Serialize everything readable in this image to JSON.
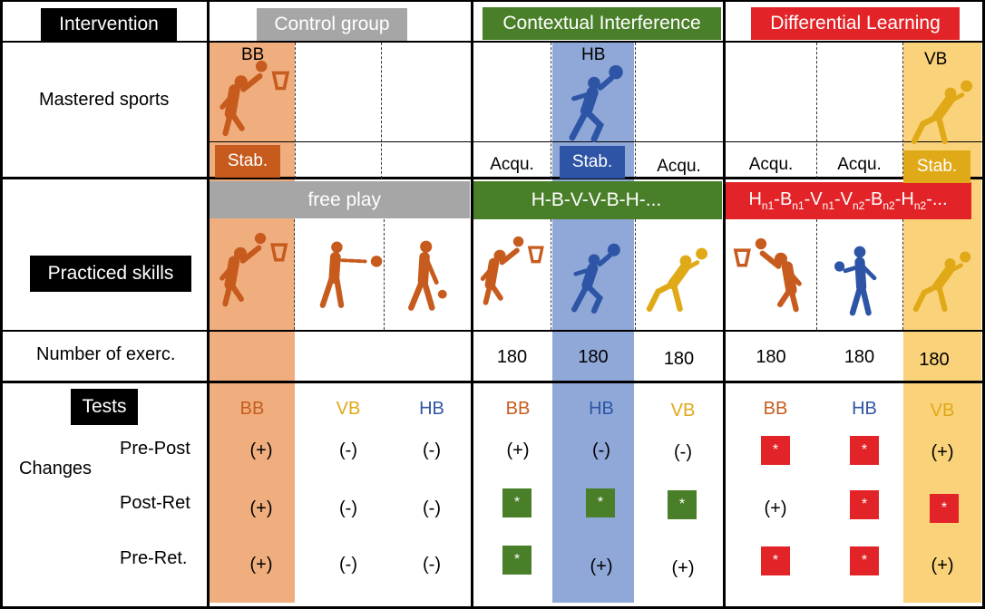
{
  "colors": {
    "orange": "#C75B1E",
    "orange_band": "#F0AE7F",
    "blue": "#2E55A5",
    "blue_band": "#8FA8D8",
    "yellow": "#E0A918",
    "yellow_band": "#FAD27A",
    "green": "#4A7F2A",
    "red": "#E22428",
    "gray": "#A6A6A6"
  },
  "header": {
    "intervention": "Intervention",
    "control_group": "Control group",
    "contextual_interference": "Contextual Interference",
    "differential_learning": "Differential Learning"
  },
  "rows": {
    "mastered_sports": "Mastered sports",
    "practiced_skills": "Practiced skills",
    "number_of_exercises": "Number of exerc.",
    "tests": "Tests",
    "changes": "Changes",
    "pre_post": "Pre-Post",
    "post_ret": "Post-Ret",
    "pre_ret": "Pre-Ret."
  },
  "mastered": {
    "bb_label": "BB",
    "hb_label": "HB",
    "vb_label": "VB",
    "status": [
      "Stab.",
      "",
      "",
      "Acqu.",
      "Stab.",
      "Acqu.",
      "Acqu.",
      "Acqu.",
      "Stab."
    ]
  },
  "practice": {
    "free_play": "free play",
    "ci_sequence": "H-B-V-V-B-H-...",
    "dl_sequence": {
      "h1": "H",
      "n1a": "n1",
      "b1": "-B",
      "n1b": "n1",
      "v1": "-V",
      "n1c": "n1",
      "v2": "-V",
      "n2a": "n2",
      "b2": "-B",
      "n2b": "n2",
      "h2": "-H",
      "n2c": "n2",
      "tail": "-..."
    }
  },
  "exercises": [
    "",
    "",
    "",
    "180",
    "180",
    "180",
    "180",
    "180",
    "180"
  ],
  "tests": {
    "sports": [
      "BB",
      "VB",
      "HB",
      "BB",
      "HB",
      "VB",
      "BB",
      "HB",
      "VB"
    ],
    "pre_post": [
      "(+)",
      "(-)",
      "(-)",
      "(+)",
      "(-)",
      "(-)",
      "*",
      "*",
      "(+)"
    ],
    "post_ret": [
      "(+)",
      "(-)",
      "(-)",
      "*",
      "*",
      "*",
      "(+)",
      "*",
      "*"
    ],
    "pre_ret": [
      "(+)",
      "(-)",
      "(-)",
      "*",
      "(+)",
      "(+)",
      "*",
      "*",
      "(+)"
    ]
  }
}
